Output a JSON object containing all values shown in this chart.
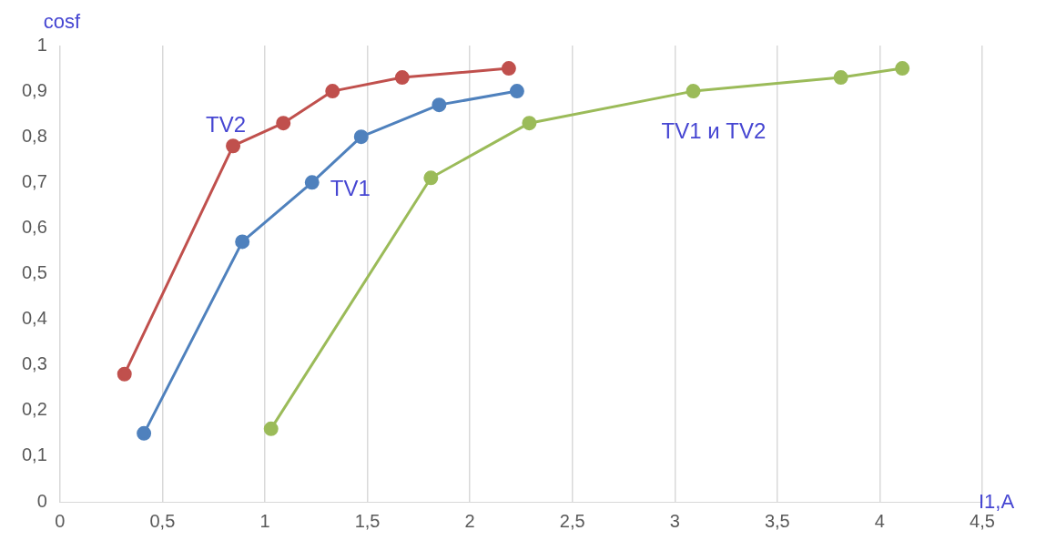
{
  "chart_data": {
    "type": "line",
    "xlabel": "I1,A",
    "ylabel": "cosf",
    "series": [
      {
        "name": "TV2",
        "color": "#c0504d",
        "x": [
          0.315,
          0.845,
          1.09,
          1.33,
          1.67,
          2.19
        ],
        "values": [
          0.28,
          0.78,
          0.83,
          0.9,
          0.93,
          0.95
        ]
      },
      {
        "name": "TV1",
        "color": "#4f81bd",
        "x": [
          0.41,
          0.89,
          1.23,
          1.47,
          1.85,
          2.23
        ],
        "values": [
          0.15,
          0.57,
          0.7,
          0.8,
          0.87,
          0.9
        ]
      },
      {
        "name": "TV1 и TV2",
        "color": "#9bbb59",
        "x": [
          1.03,
          1.81,
          2.29,
          3.09,
          3.81,
          4.11
        ],
        "values": [
          0.16,
          0.71,
          0.83,
          0.9,
          0.93,
          0.95
        ]
      }
    ],
    "xlim": [
      0,
      4.5
    ],
    "xticks": [
      0,
      {
        "value": 0.5,
        "label": "0,5"
      },
      1,
      {
        "value": 1.5,
        "label": "1,5"
      },
      2,
      {
        "value": 2.5,
        "label": "2,5"
      },
      3,
      {
        "value": 3.5,
        "label": "3,5"
      },
      4,
      {
        "value": 4.5,
        "label": "4,5"
      }
    ],
    "ylim": [
      0,
      1
    ],
    "yticks": [
      0,
      {
        "value": 0.1,
        "label": "0,1"
      },
      {
        "value": 0.2,
        "label": "0,2"
      },
      {
        "value": 0.3,
        "label": "0,3"
      },
      {
        "value": 0.4,
        "label": "0,4"
      },
      {
        "value": 0.5,
        "label": "0,5"
      },
      {
        "value": 0.6,
        "label": "0,6"
      },
      {
        "value": 0.7,
        "label": "0,7"
      },
      {
        "value": 0.8,
        "label": "0,8"
      },
      {
        "value": 0.9,
        "label": "0,9"
      },
      1
    ],
    "grid": "x",
    "legend": false,
    "marker": "circle",
    "line_style": "solid"
  }
}
